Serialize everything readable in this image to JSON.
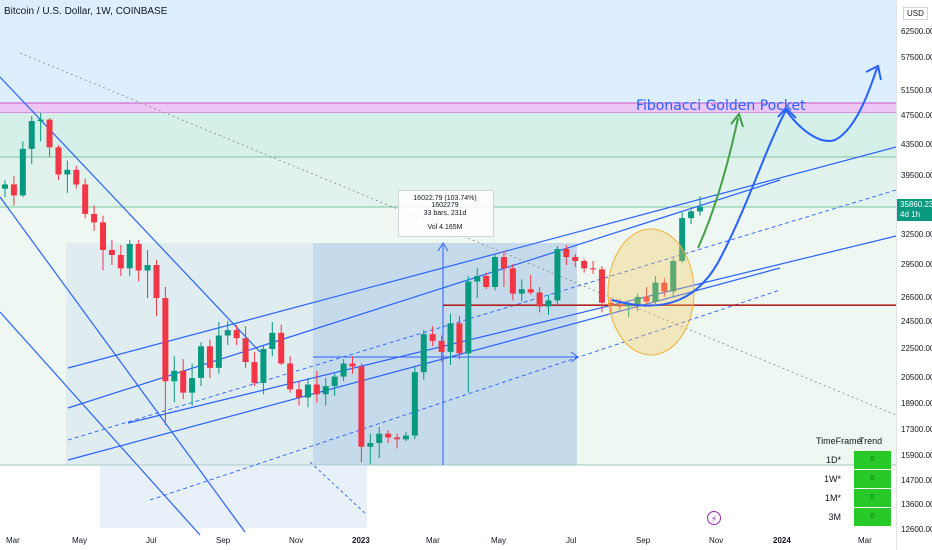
{
  "header": {
    "title": "Bitcoin / U.S. Dollar, 1W, COINBASE"
  },
  "price_axis": {
    "currency": "USD",
    "ticks": [
      "62500.00",
      "57500.00",
      "51500.00",
      "47500.00",
      "43500.00",
      "39500.00",
      "32500.00",
      "29500.00",
      "26500.00",
      "24500.00",
      "22500.00",
      "20500.00",
      "18900.00",
      "17300.00",
      "15900.00",
      "14700.00",
      "13600.00",
      "12600.00"
    ],
    "current_price": "35860.23",
    "countdown": "4d 1h"
  },
  "time_axis": {
    "ticks": [
      "Mar",
      "May",
      "Jul",
      "Sep",
      "Nov",
      "2023",
      "Mar",
      "May",
      "Jul",
      "Sep",
      "Nov",
      "2024",
      "Mar"
    ]
  },
  "measure": {
    "line1": "16022.79 (103.74%) 1602279",
    "line2": "33 bars, 231d",
    "line3": "Vol 4.165M"
  },
  "annotation": {
    "fibonacci": "Fibonacci Golden Pocket"
  },
  "trend_table": {
    "col_timeframe": "TimeFrame",
    "col_trend": "Trend",
    "rows": [
      {
        "tf": "1D*",
        "trend": "0"
      },
      {
        "tf": "1W*",
        "trend": "0"
      },
      {
        "tf": "1M*",
        "trend": "0"
      },
      {
        "tf": "3M",
        "trend": "0"
      }
    ],
    "trend_color": "#26c928"
  },
  "icons": {
    "flash": "lightning-icon"
  },
  "colors": {
    "up": "#089981",
    "down": "#f23645",
    "line": "#2962ff",
    "support": "#b22222"
  },
  "chart_data": {
    "type": "candlestick",
    "title": "",
    "ylim": [
      12600,
      64000
    ],
    "interval": "1W",
    "x_axis": [
      "Mar",
      "May",
      "Jul",
      "Sep",
      "Nov",
      "2023",
      "Mar",
      "May",
      "Jul",
      "Sep",
      "Nov",
      "2024",
      "Mar"
    ],
    "ohlc": [
      [
        38000,
        39000,
        37000,
        38500
      ],
      [
        38500,
        39500,
        36000,
        37200
      ],
      [
        37200,
        44000,
        37000,
        43000
      ],
      [
        43000,
        47500,
        41000,
        46800
      ],
      [
        46800,
        48000,
        44000,
        47000
      ],
      [
        47000,
        47200,
        42000,
        43200
      ],
      [
        43200,
        43500,
        39000,
        39700
      ],
      [
        39700,
        41500,
        37500,
        40300
      ],
      [
        40300,
        40800,
        38000,
        38500
      ],
      [
        38500,
        39200,
        34500,
        35000
      ],
      [
        35000,
        36000,
        33000,
        34000
      ],
      [
        34000,
        34800,
        29000,
        31000
      ],
      [
        31000,
        32000,
        29500,
        30500
      ],
      [
        30500,
        31500,
        28500,
        29200
      ],
      [
        29200,
        32000,
        28500,
        31600
      ],
      [
        31600,
        32000,
        28000,
        29000
      ],
      [
        29000,
        31000,
        26500,
        29500
      ],
      [
        29500,
        30000,
        25000,
        26500
      ],
      [
        26500,
        27500,
        17600,
        20300
      ],
      [
        20300,
        22000,
        19000,
        21000
      ],
      [
        21000,
        21800,
        19200,
        19600
      ],
      [
        19600,
        21500,
        18800,
        20500
      ],
      [
        20500,
        23000,
        20000,
        22700
      ],
      [
        22700,
        23200,
        20500,
        21200
      ],
      [
        21200,
        24500,
        20800,
        23500
      ],
      [
        23500,
        24600,
        22800,
        23900
      ],
      [
        23900,
        24300,
        22800,
        23300
      ],
      [
        23300,
        24200,
        21200,
        21600
      ],
      [
        21600,
        22300,
        20000,
        20200
      ],
      [
        20200,
        22800,
        19500,
        22500
      ],
      [
        22500,
        24500,
        22000,
        23700
      ],
      [
        23700,
        24300,
        21400,
        21500
      ],
      [
        21500,
        22000,
        19600,
        19800
      ],
      [
        19800,
        20300,
        18800,
        19300
      ],
      [
        19300,
        20500,
        18700,
        20100
      ],
      [
        20100,
        21000,
        19000,
        19500
      ],
      [
        19500,
        20500,
        18800,
        20000
      ],
      [
        20000,
        20800,
        19400,
        20600
      ],
      [
        20600,
        21800,
        20300,
        21500
      ],
      [
        21500,
        22000,
        20800,
        21300
      ],
      [
        21300,
        21500,
        15600,
        16400
      ],
      [
        16400,
        17100,
        15500,
        16600
      ],
      [
        16600,
        17500,
        15800,
        17100
      ],
      [
        17100,
        17300,
        16600,
        16900
      ],
      [
        16900,
        17100,
        16300,
        16800
      ],
      [
        16800,
        17200,
        16700,
        17000
      ],
      [
        17000,
        21300,
        16800,
        20900
      ],
      [
        20900,
        23900,
        20400,
        23600
      ],
      [
        23600,
        24200,
        22700,
        23100
      ],
      [
        23100,
        23500,
        21600,
        22300
      ],
      [
        22300,
        25200,
        21400,
        24400
      ],
      [
        24400,
        25000,
        21800,
        22200
      ],
      [
        22200,
        28500,
        19600,
        28000
      ],
      [
        28000,
        29200,
        26500,
        28500
      ],
      [
        28500,
        28800,
        27300,
        27500
      ],
      [
        27500,
        30500,
        27200,
        30300
      ],
      [
        30300,
        30900,
        27500,
        29200
      ],
      [
        29200,
        29600,
        26300,
        26900
      ],
      [
        26900,
        28200,
        26200,
        27300
      ],
      [
        27300,
        28600,
        26800,
        27000
      ],
      [
        27000,
        27500,
        25300,
        25800
      ],
      [
        25800,
        26800,
        25100,
        26300
      ],
      [
        26300,
        31400,
        25800,
        31100
      ],
      [
        31100,
        31500,
        29500,
        30300
      ],
      [
        30300,
        30600,
        29300,
        29900
      ],
      [
        29900,
        30100,
        28800,
        29200
      ],
      [
        29200,
        29900,
        28700,
        29100
      ],
      [
        29100,
        29400,
        25300,
        26100
      ],
      [
        26100,
        26500,
        25300,
        25900
      ],
      [
        25900,
        26400,
        25500,
        25800
      ],
      [
        25800,
        26200,
        24900,
        26000
      ],
      [
        26000,
        26900,
        25400,
        26600
      ],
      [
        26600,
        27500,
        26000,
        26200
      ],
      [
        26200,
        28500,
        26000,
        27900
      ],
      [
        27900,
        28300,
        26600,
        27100
      ],
      [
        27100,
        30100,
        26600,
        29900
      ],
      [
        29900,
        35200,
        29700,
        34500
      ],
      [
        34500,
        35500,
        33800,
        35300
      ],
      [
        35300,
        37100,
        34800,
        35860
      ]
    ],
    "support_level": 25900
  }
}
